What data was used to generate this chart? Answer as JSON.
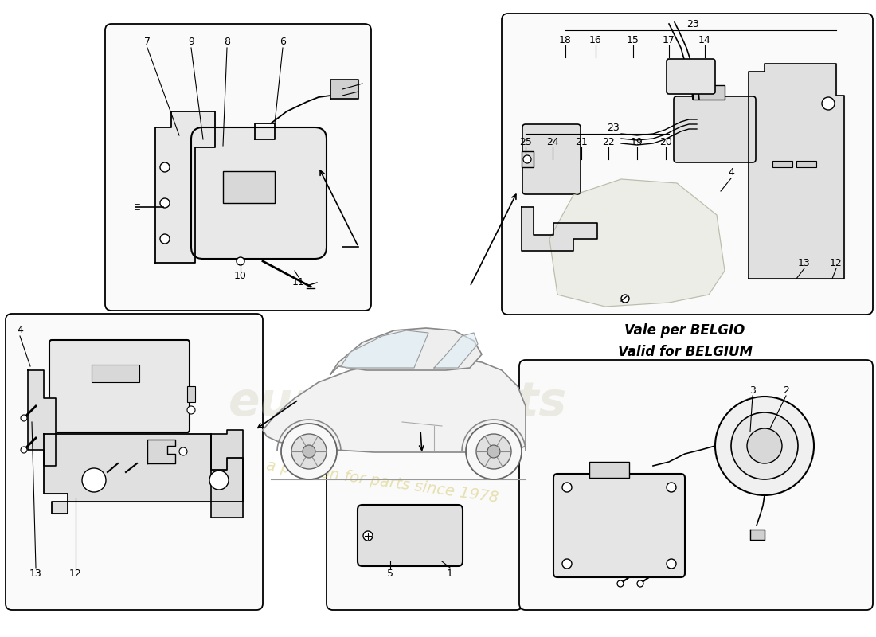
{
  "bg_color": "#ffffff",
  "text_color": "#000000",
  "line_color": "#000000",
  "watermark_color_euro": "#c8c8a0",
  "watermark_color_passion": "#d4c870",
  "belgium_text1": "Vale per BELGIO",
  "belgium_text2": "Valid for BELGIUM"
}
